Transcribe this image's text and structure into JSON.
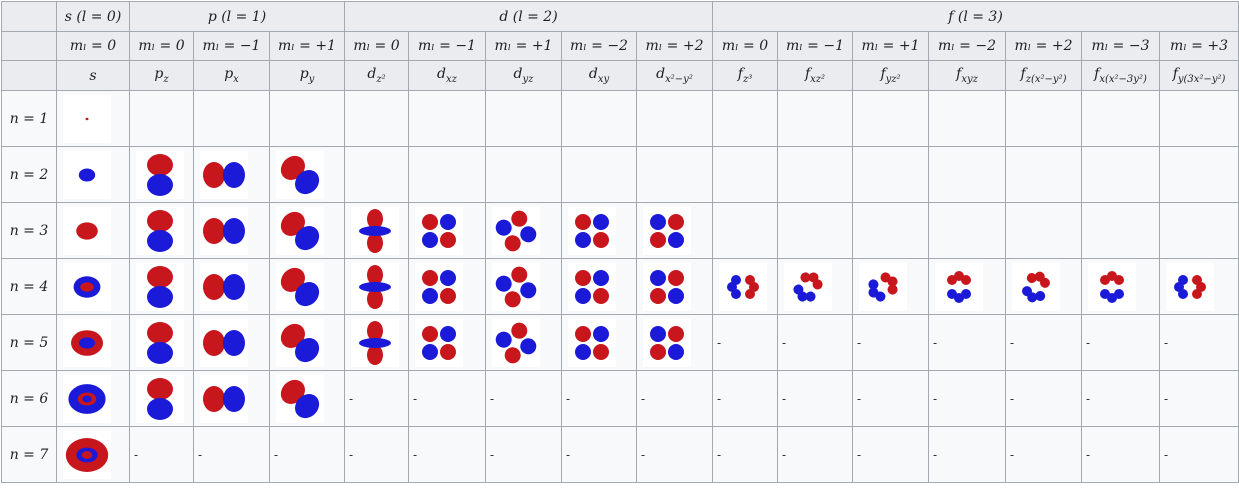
{
  "groups": [
    {
      "label": "s (l = 0)",
      "ml": [
        "mₗ = 0"
      ],
      "orbitals": [
        {
          "base": "s"
        }
      ]
    },
    {
      "label": "p (l = 1)",
      "ml": [
        "mₗ = 0",
        "mₗ = −1",
        "mₗ = +1"
      ],
      "orbitals": [
        {
          "base": "p",
          "sub": "z"
        },
        {
          "base": "p",
          "sub": "x"
        },
        {
          "base": "p",
          "sub": "y"
        }
      ]
    },
    {
      "label": "d (l = 2)",
      "ml": [
        "mₗ = 0",
        "mₗ = −1",
        "mₗ = +1",
        "mₗ = −2",
        "mₗ = +2"
      ],
      "orbitals": [
        {
          "base": "d",
          "sub": "z²"
        },
        {
          "base": "d",
          "sub": "xz"
        },
        {
          "base": "d",
          "sub": "yz"
        },
        {
          "base": "d",
          "sub": "xy"
        },
        {
          "base": "d",
          "sub": "x²−y²"
        }
      ]
    },
    {
      "label": "f (l = 3)",
      "ml": [
        "mₗ = 0",
        "mₗ = −1",
        "mₗ = +1",
        "mₗ = −2",
        "mₗ = +2",
        "mₗ = −3",
        "mₗ = +3"
      ],
      "orbitals": [
        {
          "base": "f",
          "sub": "z³"
        },
        {
          "base": "f",
          "sub": "xz²"
        },
        {
          "base": "f",
          "sub": "yz²"
        },
        {
          "base": "f",
          "sub": "xyz"
        },
        {
          "base": "f",
          "sub": "z(x²−y²)"
        },
        {
          "base": "f",
          "sub": "x(x²−3y²)"
        },
        {
          "base": "f",
          "sub": "y(3x²−y²)"
        }
      ]
    }
  ],
  "rows": [
    {
      "label": "n = 1",
      "cells": [
        null,
        null,
        null,
        null,
        null,
        null,
        null,
        null,
        null,
        null,
        null,
        null,
        null,
        null,
        null,
        null
      ]
    },
    {
      "label": "n = 2",
      "cells": [
        null,
        null,
        null,
        null,
        null,
        null,
        null,
        null,
        null,
        null,
        null,
        null,
        null,
        null,
        null,
        null
      ]
    },
    {
      "label": "n = 3",
      "cells": [
        null,
        null,
        null,
        null,
        null,
        null,
        null,
        null,
        null,
        null,
        null,
        null,
        null,
        null,
        null,
        null
      ]
    },
    {
      "label": "n = 4",
      "cells": [
        null,
        null,
        null,
        null,
        null,
        null,
        null,
        null,
        null,
        null,
        null,
        null,
        null,
        null,
        null,
        null
      ]
    },
    {
      "label": "n = 5",
      "cells": [
        null,
        null,
        null,
        null,
        null,
        null,
        null,
        null,
        null,
        "-",
        "-",
        "-",
        "-",
        "-",
        "-",
        "-"
      ]
    },
    {
      "label": "n = 6",
      "cells": [
        null,
        null,
        null,
        null,
        "-",
        "-",
        "-",
        "-",
        "-",
        "-",
        "-",
        "-",
        "-",
        "-",
        "-",
        "-"
      ]
    },
    {
      "label": "n = 7",
      "cells": [
        null,
        "-",
        "-",
        "-",
        "-",
        "-",
        "-",
        "-",
        "-",
        "-",
        "-",
        "-",
        "-",
        "-",
        "-",
        "-"
      ]
    }
  ]
}
